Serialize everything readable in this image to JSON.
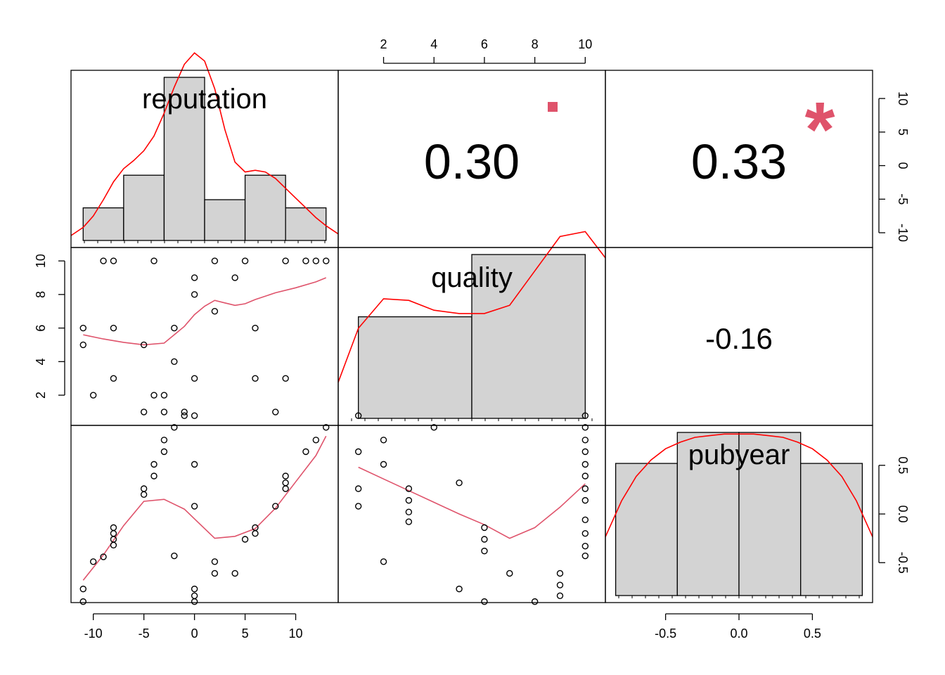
{
  "chart_data": {
    "type": "scatter",
    "variables": [
      "reputation",
      "quality",
      "pubyear"
    ],
    "colors": {
      "smooth": "#df536b",
      "density": "#ff0000",
      "hist_fill": "#d3d3d3",
      "significance": "#df536b"
    },
    "axes": {
      "reputation": {
        "range": [
          -12.2,
          14.2
        ],
        "ticks": [
          -10,
          -5,
          0,
          5,
          10
        ],
        "tick_labels": [
          "-10",
          "-5",
          "0",
          "5",
          "10"
        ]
      },
      "quality": {
        "range": [
          0.2,
          10.8
        ],
        "ticks": [
          2,
          4,
          6,
          8,
          10
        ],
        "tick_labels": [
          "2",
          "4",
          "6",
          "8",
          "10"
        ]
      },
      "pubyear": {
        "range": [
          -0.91,
          0.91
        ],
        "ticks": [
          -0.5,
          0.0,
          0.5
        ],
        "tick_labels": [
          "-0.5",
          "0.0",
          "0.5"
        ]
      }
    },
    "histograms": {
      "reputation": {
        "bins": [
          [
            -11,
            -7
          ],
          [
            -7,
            -3
          ],
          [
            -3,
            1
          ],
          [
            1,
            5
          ],
          [
            5,
            9
          ],
          [
            9,
            13
          ]
        ],
        "heights": [
          0.2,
          0.4,
          1.0,
          0.25,
          0.4,
          0.2
        ]
      },
      "quality": {
        "bins": [
          [
            1,
            5.5
          ],
          [
            5.5,
            10
          ]
        ],
        "heights": [
          0.62,
          1.0
        ]
      },
      "pubyear": {
        "bins": [
          [
            -0.84,
            -0.42
          ],
          [
            -0.42,
            0.0
          ],
          [
            0.0,
            0.42
          ],
          [
            0.42,
            0.84
          ]
        ],
        "heights": [
          0.81,
          1.0,
          1.0,
          0.81
        ]
      }
    },
    "densities": {
      "reputation": {
        "x": [
          -12.2,
          -11,
          -10,
          -9,
          -8,
          -7,
          -6,
          -5,
          -4,
          -3,
          -2,
          -1,
          0,
          1,
          2,
          3,
          4,
          5,
          6,
          7,
          8,
          9,
          10,
          11,
          12,
          13,
          14.2
        ],
        "y": [
          0.03,
          0.08,
          0.15,
          0.25,
          0.36,
          0.44,
          0.49,
          0.55,
          0.64,
          0.78,
          0.94,
          1.08,
          1.15,
          1.1,
          0.93,
          0.68,
          0.48,
          0.42,
          0.43,
          0.42,
          0.38,
          0.32,
          0.26,
          0.2,
          0.14,
          0.09,
          0.04
        ]
      },
      "quality": {
        "x": [
          0.2,
          1,
          2,
          3,
          4,
          5,
          6,
          7,
          8,
          9,
          10,
          10.8
        ],
        "y": [
          0.22,
          0.55,
          0.73,
          0.72,
          0.66,
          0.64,
          0.64,
          0.69,
          0.9,
          1.11,
          1.14,
          0.98
        ]
      },
      "pubyear": {
        "x": [
          -0.91,
          -0.8,
          -0.7,
          -0.6,
          -0.5,
          -0.4,
          -0.3,
          -0.2,
          -0.1,
          0.0,
          0.1,
          0.2,
          0.3,
          0.4,
          0.5,
          0.6,
          0.7,
          0.8,
          0.91
        ],
        "y": [
          0.36,
          0.58,
          0.73,
          0.83,
          0.9,
          0.94,
          0.97,
          0.98,
          0.99,
          0.99,
          0.99,
          0.98,
          0.97,
          0.94,
          0.9,
          0.83,
          0.73,
          0.58,
          0.36
        ]
      }
    },
    "correlations": [
      {
        "pair": [
          "reputation",
          "quality"
        ],
        "value": "0.30",
        "significance": "."
      },
      {
        "pair": [
          "reputation",
          "pubyear"
        ],
        "value": "0.33",
        "significance": "*"
      },
      {
        "pair": [
          "quality",
          "pubyear"
        ],
        "value": "-0.16",
        "significance": ""
      }
    ],
    "scatter_reputation_quality": {
      "points": [
        [
          -11,
          6
        ],
        [
          -11,
          5
        ],
        [
          -10,
          2
        ],
        [
          -9,
          10
        ],
        [
          -8,
          10
        ],
        [
          -8,
          6
        ],
        [
          -8,
          3
        ],
        [
          -5,
          5
        ],
        [
          -5,
          1
        ],
        [
          -4,
          10
        ],
        [
          -4,
          2
        ],
        [
          -3,
          2
        ],
        [
          -3,
          1
        ],
        [
          -2,
          6
        ],
        [
          -2,
          4
        ],
        [
          -1,
          1
        ],
        [
          0,
          9
        ],
        [
          0,
          8
        ],
        [
          0,
          3
        ],
        [
          2,
          10
        ],
        [
          2,
          7
        ],
        [
          4,
          9
        ],
        [
          5,
          10
        ],
        [
          6,
          6
        ],
        [
          6,
          3
        ],
        [
          8,
          1
        ],
        [
          9,
          10
        ],
        [
          9,
          3
        ],
        [
          11,
          10
        ],
        [
          12,
          10
        ],
        [
          13,
          10
        ]
      ],
      "smooth": [
        [
          -11,
          5.6
        ],
        [
          -9,
          5.35
        ],
        [
          -7,
          5.15
        ],
        [
          -5,
          5.0
        ],
        [
          -3,
          5.1
        ],
        [
          -2,
          5.6
        ],
        [
          -1,
          6.1
        ],
        [
          0,
          6.8
        ],
        [
          1,
          7.3
        ],
        [
          2,
          7.65
        ],
        [
          3,
          7.5
        ],
        [
          4,
          7.35
        ],
        [
          5,
          7.45
        ],
        [
          6,
          7.7
        ],
        [
          8,
          8.1
        ],
        [
          10,
          8.4
        ],
        [
          12,
          8.75
        ],
        [
          13,
          9.0
        ]
      ]
    },
    "scatter_reputation_pubyear": {
      "points": [
        [
          -11,
          -0.77
        ],
        [
          -11,
          -0.9
        ],
        [
          -10,
          -0.49
        ],
        [
          -9,
          -0.44
        ],
        [
          -8,
          -0.14
        ],
        [
          -8,
          -0.2
        ],
        [
          -8,
          -0.26
        ],
        [
          -8,
          -0.32
        ],
        [
          -5,
          0.26
        ],
        [
          -5,
          0.2
        ],
        [
          -4,
          0.51
        ],
        [
          -4,
          0.39
        ],
        [
          -3,
          0.76
        ],
        [
          -3,
          0.64
        ],
        [
          -2,
          0.89
        ],
        [
          -2,
          -0.43
        ],
        [
          -1,
          1.01
        ],
        [
          0,
          1.01
        ],
        [
          0,
          0.51
        ],
        [
          0,
          0.08
        ],
        [
          0,
          -0.77
        ],
        [
          0,
          -0.84
        ],
        [
          0,
          -0.9
        ],
        [
          2,
          -0.49
        ],
        [
          2,
          -0.61
        ],
        [
          4,
          -0.61
        ],
        [
          5,
          -0.26
        ],
        [
          6,
          -0.14
        ],
        [
          6,
          -0.2
        ],
        [
          8,
          0.08
        ],
        [
          9,
          0.39
        ],
        [
          9,
          0.32
        ],
        [
          9,
          0.26
        ],
        [
          11,
          0.64
        ],
        [
          12,
          0.76
        ],
        [
          13,
          0.89
        ]
      ],
      "smooth": [
        [
          -11,
          -0.68
        ],
        [
          -9,
          -0.42
        ],
        [
          -7,
          -0.12
        ],
        [
          -5,
          0.13
        ],
        [
          -3,
          0.15
        ],
        [
          -1,
          0.05
        ],
        [
          0,
          -0.05
        ],
        [
          2,
          -0.25
        ],
        [
          4,
          -0.23
        ],
        [
          6,
          -0.15
        ],
        [
          8,
          0.06
        ],
        [
          10,
          0.33
        ],
        [
          12,
          0.6
        ],
        [
          13,
          0.8
        ]
      ]
    },
    "scatter_quality_pubyear": {
      "points": [
        [
          1,
          1.01
        ],
        [
          1,
          0.64
        ],
        [
          1,
          0.26
        ],
        [
          1,
          0.08
        ],
        [
          2,
          0.76
        ],
        [
          2,
          0.51
        ],
        [
          2,
          -0.49
        ],
        [
          3,
          0.26
        ],
        [
          3,
          0.14
        ],
        [
          3,
          0.02
        ],
        [
          3,
          -0.08
        ],
        [
          4,
          0.89
        ],
        [
          5,
          0.32
        ],
        [
          5,
          -0.77
        ],
        [
          6,
          -0.14
        ],
        [
          6,
          -0.26
        ],
        [
          6,
          -0.38
        ],
        [
          6,
          -0.9
        ],
        [
          7,
          -0.61
        ],
        [
          8,
          -0.9
        ],
        [
          9,
          -0.61
        ],
        [
          9,
          -0.73
        ],
        [
          9,
          -0.84
        ],
        [
          10,
          1.01
        ],
        [
          10,
          0.89
        ],
        [
          10,
          0.76
        ],
        [
          10,
          0.64
        ],
        [
          10,
          0.51
        ],
        [
          10,
          0.39
        ],
        [
          10,
          0.26
        ],
        [
          10,
          0.14
        ],
        [
          10,
          -0.06
        ],
        [
          10,
          -0.2
        ],
        [
          10,
          -0.33
        ],
        [
          10,
          -0.43
        ]
      ],
      "smooth": [
        [
          1,
          0.48
        ],
        [
          2,
          0.36
        ],
        [
          3,
          0.24
        ],
        [
          4,
          0.12
        ],
        [
          5,
          0.0
        ],
        [
          6,
          -0.11
        ],
        [
          7,
          -0.25
        ],
        [
          8,
          -0.14
        ],
        [
          9,
          0.07
        ],
        [
          10,
          0.31
        ]
      ]
    },
    "grid": false
  }
}
